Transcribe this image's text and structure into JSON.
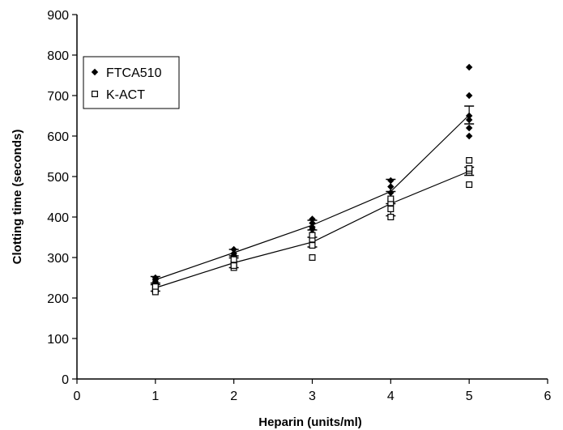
{
  "chart_data": {
    "type": "scatter",
    "title": "",
    "xlabel": "Heparin (units/ml)",
    "ylabel": "Clotting time (seconds)",
    "xlim": [
      0,
      6
    ],
    "ylim": [
      0,
      900
    ],
    "xticks": [
      "0",
      "1",
      "2",
      "3",
      "4",
      "5",
      "6"
    ],
    "yticks": [
      "0",
      "100",
      "200",
      "300",
      "400",
      "500",
      "600",
      "700",
      "800",
      "900"
    ],
    "grid": false,
    "legend_position": "top-left",
    "series": [
      {
        "name": "FTCA510",
        "marker": "filled-diamond",
        "color": "#000000",
        "points": [
          {
            "x": 1,
            "y": 240
          },
          {
            "x": 1,
            "y": 245
          },
          {
            "x": 1,
            "y": 235
          },
          {
            "x": 1,
            "y": 250
          },
          {
            "x": 2,
            "y": 300
          },
          {
            "x": 2,
            "y": 310
          },
          {
            "x": 2,
            "y": 320
          },
          {
            "x": 2,
            "y": 305
          },
          {
            "x": 3,
            "y": 360
          },
          {
            "x": 3,
            "y": 375
          },
          {
            "x": 3,
            "y": 385
          },
          {
            "x": 3,
            "y": 395
          },
          {
            "x": 3,
            "y": 370
          },
          {
            "x": 4,
            "y": 430
          },
          {
            "x": 4,
            "y": 445
          },
          {
            "x": 4,
            "y": 460
          },
          {
            "x": 4,
            "y": 475
          },
          {
            "x": 4,
            "y": 490
          },
          {
            "x": 5,
            "y": 600
          },
          {
            "x": 5,
            "y": 620
          },
          {
            "x": 5,
            "y": 640
          },
          {
            "x": 5,
            "y": 650
          },
          {
            "x": 5,
            "y": 700
          },
          {
            "x": 5,
            "y": 770
          }
        ],
        "mean": [
          {
            "x": 1,
            "y": 245,
            "err": 8
          },
          {
            "x": 2,
            "y": 312,
            "err": 8
          },
          {
            "x": 3,
            "y": 380,
            "err": 12
          },
          {
            "x": 4,
            "y": 463,
            "err": 30
          },
          {
            "x": 5,
            "y": 652,
            "err": 22
          }
        ]
      },
      {
        "name": "K-ACT",
        "marker": "open-square",
        "color": "#000000",
        "points": [
          {
            "x": 1,
            "y": 220
          },
          {
            "x": 1,
            "y": 228
          },
          {
            "x": 1,
            "y": 215
          },
          {
            "x": 2,
            "y": 275
          },
          {
            "x": 2,
            "y": 285
          },
          {
            "x": 2,
            "y": 295
          },
          {
            "x": 2,
            "y": 280
          },
          {
            "x": 3,
            "y": 300
          },
          {
            "x": 3,
            "y": 330
          },
          {
            "x": 3,
            "y": 345
          },
          {
            "x": 3,
            "y": 355
          },
          {
            "x": 4,
            "y": 400
          },
          {
            "x": 4,
            "y": 420
          },
          {
            "x": 4,
            "y": 435
          },
          {
            "x": 4,
            "y": 445
          },
          {
            "x": 5,
            "y": 480
          },
          {
            "x": 5,
            "y": 510
          },
          {
            "x": 5,
            "y": 515
          },
          {
            "x": 5,
            "y": 520
          },
          {
            "x": 5,
            "y": 540
          }
        ],
        "mean": [
          {
            "x": 1,
            "y": 225,
            "err": 8
          },
          {
            "x": 2,
            "y": 287,
            "err": 12
          },
          {
            "x": 3,
            "y": 338,
            "err": 12
          },
          {
            "x": 4,
            "y": 433,
            "err": 30
          },
          {
            "x": 5,
            "y": 513,
            "err": 10
          }
        ]
      }
    ]
  }
}
